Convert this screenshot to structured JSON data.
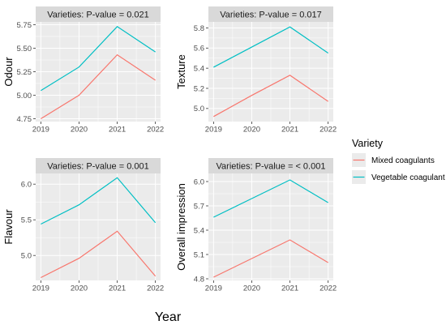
{
  "figure": {
    "xlabel": "Year",
    "legend": {
      "title": "Variety",
      "placement": "right",
      "entries": [
        {
          "name": "Mixed coagulants",
          "color": "#F8766D"
        },
        {
          "name": "Vegetable coagulant",
          "color": "#00BFC4"
        }
      ]
    }
  },
  "chart_data": [
    {
      "type": "line",
      "title": "Varieties: P-value =  0.021",
      "ylabel": "Odour",
      "x": [
        2019,
        2020,
        2021,
        2022
      ],
      "xticks": [
        "2019",
        "2020",
        "2021",
        "2022"
      ],
      "ylim": [
        4.72,
        5.78
      ],
      "yticks": [
        4.75,
        5.0,
        5.25,
        5.5,
        5.75
      ],
      "yticklabels": [
        "4.75",
        "5.00",
        "5.25",
        "5.50",
        "5.75"
      ],
      "grid": true,
      "series": [
        {
          "name": "Mixed coagulants",
          "values": [
            4.75,
            5.0,
            5.43,
            5.16
          ]
        },
        {
          "name": "Vegetable coagulant",
          "values": [
            5.05,
            5.3,
            5.73,
            5.46
          ]
        }
      ]
    },
    {
      "type": "line",
      "title": "Varieties: P-value =  0.017",
      "ylabel": "Texture",
      "x": [
        2019,
        2020,
        2021,
        2022
      ],
      "xticks": [
        "2019",
        "2020",
        "2021",
        "2022"
      ],
      "ylim": [
        4.87,
        5.86
      ],
      "yticks": [
        5.0,
        5.2,
        5.4,
        5.6,
        5.8
      ],
      "yticklabels": [
        "5.0",
        "5.2",
        "5.4",
        "5.6",
        "5.8"
      ],
      "grid": true,
      "series": [
        {
          "name": "Mixed coagulants",
          "values": [
            4.92,
            5.13,
            5.33,
            5.07
          ]
        },
        {
          "name": "Vegetable coagulant",
          "values": [
            5.41,
            5.61,
            5.81,
            5.55
          ]
        }
      ]
    },
    {
      "type": "line",
      "title": "Varieties: P-value =  0.001",
      "ylabel": "Flavour",
      "x": [
        2019,
        2020,
        2021,
        2022
      ],
      "xticks": [
        "2019",
        "2020",
        "2021",
        "2022"
      ],
      "ylim": [
        4.65,
        6.15
      ],
      "yticks": [
        5.0,
        5.5,
        6.0
      ],
      "yticklabels": [
        "5.0",
        "5.5",
        "6.0"
      ],
      "grid": true,
      "series": [
        {
          "name": "Mixed coagulants",
          "values": [
            4.69,
            4.96,
            5.34,
            4.71
          ]
        },
        {
          "name": "Vegetable coagulant",
          "values": [
            5.44,
            5.71,
            6.09,
            5.46
          ]
        }
      ]
    },
    {
      "type": "line",
      "title": "Varieties: P-value =  < 0.001",
      "ylabel": "Overall impression",
      "x": [
        2019,
        2020,
        2021,
        2022
      ],
      "xticks": [
        "2019",
        "2020",
        "2021",
        "2022"
      ],
      "ylim": [
        4.78,
        6.1
      ],
      "yticks": [
        4.8,
        5.1,
        5.4,
        5.7,
        6.0
      ],
      "yticklabels": [
        "4.8",
        "5.1",
        "5.4",
        "5.7",
        "6.0"
      ],
      "grid": true,
      "series": [
        {
          "name": "Mixed coagulants",
          "values": [
            4.82,
            5.05,
            5.28,
            5.0
          ]
        },
        {
          "name": "Vegetable coagulant",
          "values": [
            5.56,
            5.79,
            6.02,
            5.74
          ]
        }
      ]
    }
  ]
}
